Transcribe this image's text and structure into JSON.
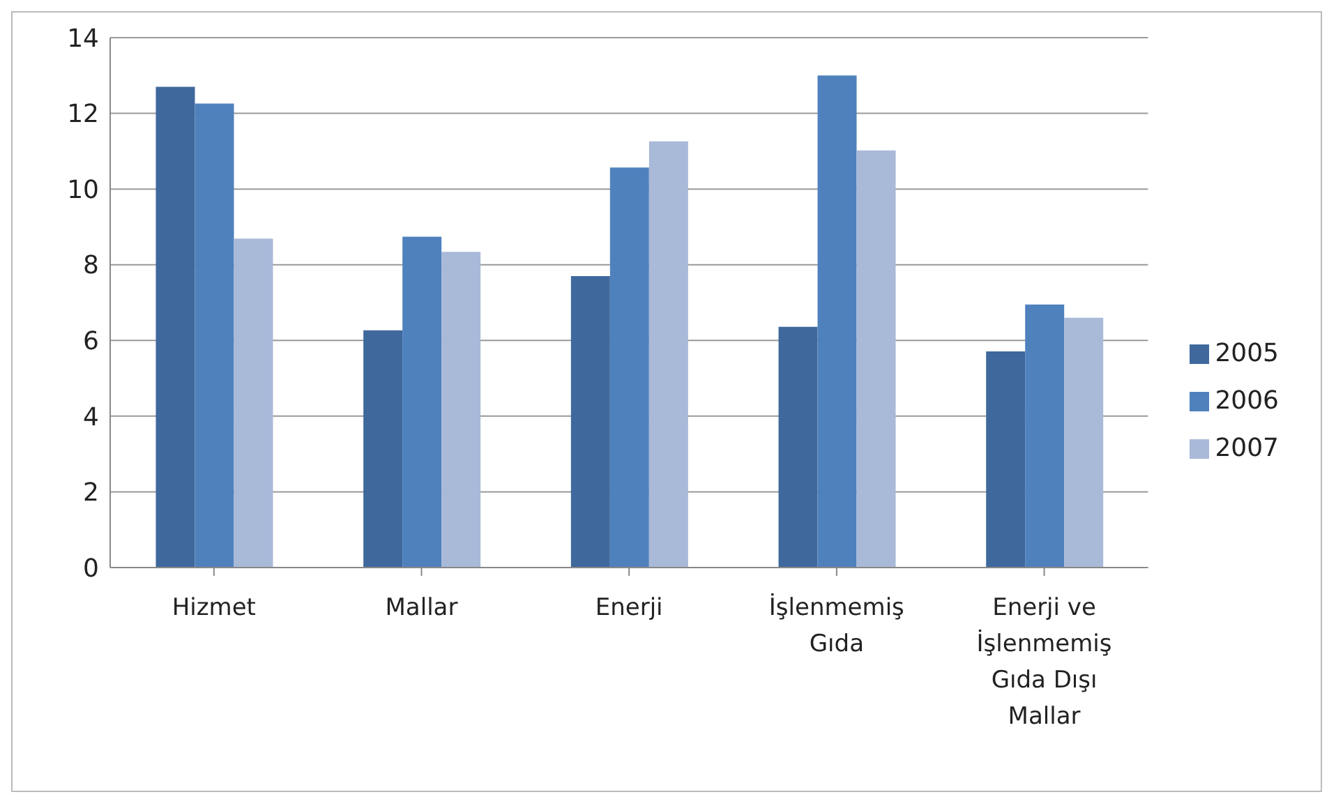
{
  "chart_data": {
    "type": "bar",
    "categories": [
      "Hizmet",
      "Mallar",
      "Enerji",
      "İşlenmemiş Gıda",
      "Enerji ve İşlenmemiş Gıda Dışı Mallar"
    ],
    "series": [
      {
        "name": "2005",
        "color": "#3f689c",
        "values": [
          12.7,
          6.27,
          7.7,
          6.36,
          5.71
        ]
      },
      {
        "name": "2006",
        "color": "#4f81bd",
        "values": [
          12.26,
          8.74,
          10.57,
          13.0,
          6.95
        ]
      },
      {
        "name": "2007",
        "color": "#a9b9d8",
        "values": [
          8.69,
          8.34,
          11.26,
          11.02,
          6.6
        ]
      }
    ],
    "ylim": [
      0,
      14
    ],
    "yticks": [
      0,
      2,
      4,
      6,
      8,
      10,
      12,
      14
    ],
    "grid": "y",
    "legend": "right"
  }
}
